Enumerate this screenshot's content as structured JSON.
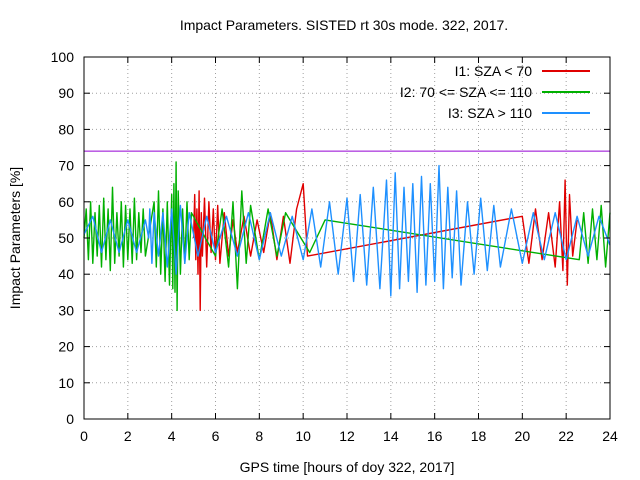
{
  "chart_data": {
    "type": "line",
    "title": "Impact Parameters. SISTED rt 30s mode. 322, 2017.",
    "xlabel": "GPS time [hours of doy 322, 2017]",
    "ylabel": "Impact Parameters [%]",
    "xlim": [
      0,
      24
    ],
    "ylim": [
      0,
      100
    ],
    "x_ticks": [
      0,
      2,
      4,
      6,
      8,
      10,
      12,
      14,
      16,
      18,
      20,
      22,
      24
    ],
    "y_ticks": [
      0,
      10,
      20,
      30,
      40,
      50,
      60,
      70,
      80,
      90,
      100
    ],
    "grid": true,
    "legend_position": "top-right",
    "reference_line": {
      "y": 74,
      "color": "#9400d3"
    },
    "series": [
      {
        "name": "I1: SZA < 70",
        "color": "#e00000",
        "points": [
          [
            5.0,
            50
          ],
          [
            5.05,
            62
          ],
          [
            5.1,
            44
          ],
          [
            5.15,
            58
          ],
          [
            5.2,
            40
          ],
          [
            5.25,
            63
          ],
          [
            5.3,
            30
          ],
          [
            5.35,
            57
          ],
          [
            5.4,
            45
          ],
          [
            5.5,
            61
          ],
          [
            5.6,
            42
          ],
          [
            5.7,
            60
          ],
          [
            5.8,
            46
          ],
          [
            5.9,
            58
          ],
          [
            6.0,
            44
          ],
          [
            6.1,
            59
          ],
          [
            6.2,
            43
          ],
          [
            6.4,
            57
          ],
          [
            6.6,
            45
          ],
          [
            6.8,
            55
          ],
          [
            7.0,
            46
          ],
          [
            7.3,
            56
          ],
          [
            7.6,
            45
          ],
          [
            7.9,
            55
          ],
          [
            8.2,
            46
          ],
          [
            8.5,
            57
          ],
          [
            8.8,
            44
          ],
          [
            9.1,
            56
          ],
          [
            9.4,
            43
          ],
          [
            9.7,
            58
          ],
          [
            10.0,
            65
          ],
          [
            10.2,
            45
          ],
          [
            20.0,
            56
          ],
          [
            20.3,
            43
          ],
          [
            20.6,
            58
          ],
          [
            20.9,
            44
          ],
          [
            21.2,
            57
          ],
          [
            21.5,
            42
          ],
          [
            21.7,
            60
          ],
          [
            21.85,
            41
          ],
          [
            21.95,
            66
          ],
          [
            22.05,
            37
          ],
          [
            22.15,
            62
          ],
          [
            22.3,
            45
          ],
          [
            22.5,
            55
          ]
        ]
      },
      {
        "name": "I2: 70 <= SZA <= 110",
        "color": "#00b000",
        "points": [
          [
            0.0,
            50
          ],
          [
            0.1,
            58
          ],
          [
            0.2,
            44
          ],
          [
            0.3,
            60
          ],
          [
            0.4,
            43
          ],
          [
            0.5,
            57
          ],
          [
            0.6,
            45
          ],
          [
            0.7,
            59
          ],
          [
            0.8,
            42
          ],
          [
            0.9,
            61
          ],
          [
            1.0,
            44
          ],
          [
            1.1,
            58
          ],
          [
            1.2,
            41
          ],
          [
            1.3,
            64
          ],
          [
            1.4,
            43
          ],
          [
            1.5,
            57
          ],
          [
            1.6,
            45
          ],
          [
            1.7,
            60
          ],
          [
            1.8,
            42
          ],
          [
            1.9,
            59
          ],
          [
            2.0,
            44
          ],
          [
            2.1,
            58
          ],
          [
            2.2,
            43
          ],
          [
            2.3,
            61
          ],
          [
            2.4,
            44
          ],
          [
            2.5,
            57
          ],
          [
            2.6,
            46
          ],
          [
            2.7,
            58
          ],
          [
            2.8,
            45
          ],
          [
            3.2,
            60
          ],
          [
            3.3,
            42
          ],
          [
            3.4,
            63
          ],
          [
            3.5,
            40
          ],
          [
            3.6,
            58
          ],
          [
            3.7,
            38
          ],
          [
            3.8,
            60
          ],
          [
            3.9,
            37
          ],
          [
            4.0,
            62
          ],
          [
            4.05,
            36
          ],
          [
            4.1,
            65
          ],
          [
            4.15,
            35
          ],
          [
            4.2,
            71
          ],
          [
            4.25,
            30
          ],
          [
            4.3,
            63
          ],
          [
            4.4,
            40
          ],
          [
            4.5,
            58
          ],
          [
            4.6,
            43
          ],
          [
            4.7,
            60
          ],
          [
            4.8,
            44
          ],
          [
            4.9,
            57
          ],
          [
            6.0,
            45
          ],
          [
            6.3,
            58
          ],
          [
            6.6,
            42
          ],
          [
            6.8,
            60
          ],
          [
            7.0,
            36
          ],
          [
            7.2,
            63
          ],
          [
            7.4,
            43
          ],
          [
            7.6,
            59
          ],
          [
            8.0,
            44
          ],
          [
            8.4,
            58
          ],
          [
            8.8,
            45
          ],
          [
            9.2,
            57
          ],
          [
            10.3,
            46
          ],
          [
            11.0,
            55
          ],
          [
            22.6,
            44
          ],
          [
            22.8,
            57
          ],
          [
            23.0,
            43
          ],
          [
            23.2,
            58
          ],
          [
            23.4,
            44
          ],
          [
            23.6,
            59
          ],
          [
            23.8,
            42
          ],
          [
            24.0,
            57
          ]
        ]
      },
      {
        "name": "I3: SZA > 110",
        "color": "#1e90ff",
        "points": [
          [
            0.0,
            51
          ],
          [
            0.4,
            56
          ],
          [
            0.8,
            46
          ],
          [
            1.2,
            55
          ],
          [
            1.6,
            46
          ],
          [
            2.0,
            55
          ],
          [
            2.4,
            46
          ],
          [
            2.8,
            55
          ],
          [
            2.95,
            50
          ],
          [
            3.0,
            58
          ],
          [
            3.1,
            43
          ],
          [
            3.2,
            57
          ],
          [
            3.4,
            45
          ],
          [
            3.6,
            57
          ],
          [
            3.8,
            42
          ],
          [
            4.0,
            58
          ],
          [
            4.2,
            40
          ],
          [
            4.4,
            59
          ],
          [
            4.6,
            43
          ],
          [
            4.8,
            57
          ],
          [
            5.2,
            45
          ],
          [
            5.6,
            56
          ],
          [
            6.0,
            46
          ],
          [
            6.5,
            56
          ],
          [
            7.0,
            45
          ],
          [
            7.5,
            57
          ],
          [
            8.0,
            44
          ],
          [
            8.5,
            57
          ],
          [
            9.0,
            45
          ],
          [
            9.5,
            56
          ],
          [
            10.0,
            44
          ],
          [
            10.4,
            58
          ],
          [
            10.8,
            42
          ],
          [
            11.2,
            60
          ],
          [
            11.6,
            40
          ],
          [
            12.0,
            61
          ],
          [
            12.3,
            38
          ],
          [
            12.6,
            62
          ],
          [
            12.9,
            37
          ],
          [
            13.2,
            64
          ],
          [
            13.5,
            36
          ],
          [
            13.8,
            66
          ],
          [
            14.0,
            34
          ],
          [
            14.2,
            68
          ],
          [
            14.4,
            36
          ],
          [
            14.6,
            64
          ],
          [
            14.8,
            38
          ],
          [
            15.0,
            65
          ],
          [
            15.2,
            35
          ],
          [
            15.4,
            67
          ],
          [
            15.6,
            37
          ],
          [
            15.8,
            65
          ],
          [
            16.0,
            38
          ],
          [
            16.2,
            70
          ],
          [
            16.4,
            36
          ],
          [
            16.6,
            64
          ],
          [
            16.8,
            39
          ],
          [
            17.0,
            63
          ],
          [
            17.2,
            37
          ],
          [
            17.5,
            60
          ],
          [
            17.8,
            40
          ],
          [
            18.1,
            61
          ],
          [
            18.4,
            41
          ],
          [
            18.7,
            59
          ],
          [
            19.0,
            42
          ],
          [
            19.5,
            58
          ],
          [
            20.0,
            43
          ],
          [
            20.5,
            57
          ],
          [
            21.0,
            44
          ],
          [
            21.5,
            57
          ],
          [
            22.0,
            44
          ],
          [
            22.5,
            56
          ],
          [
            23.0,
            45
          ],
          [
            23.5,
            56
          ],
          [
            24.0,
            48
          ]
        ]
      }
    ]
  }
}
